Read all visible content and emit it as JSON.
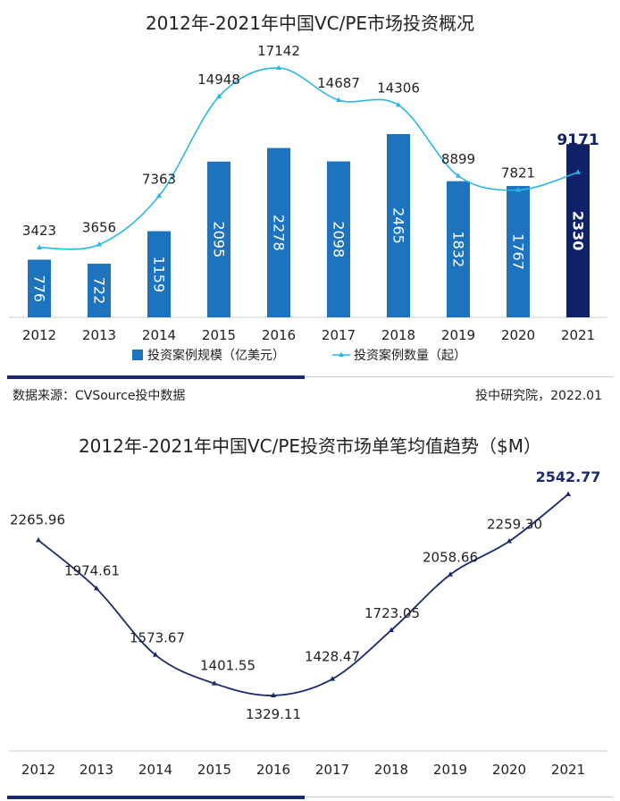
{
  "chart_data": [
    {
      "type": "bar",
      "title": "2012年-2021年中国VC/PE市场投资概况",
      "categories": [
        "2012",
        "2013",
        "2014",
        "2015",
        "2016",
        "2017",
        "2018",
        "2019",
        "2020",
        "2021"
      ],
      "series": [
        {
          "name": "投资案例规模（亿美元）",
          "kind": "bar",
          "values": [
            776,
            722,
            1159,
            2095,
            2278,
            2098,
            2465,
            1832,
            1767,
            2330
          ],
          "color": "#1e73be",
          "highlight_color": "#0f2167"
        },
        {
          "name": "投资案例数量（起）",
          "kind": "line",
          "values": [
            3423,
            3656,
            7363,
            14948,
            17142,
            14687,
            14306,
            8899,
            7821,
            9171
          ],
          "color": "#29b6e6"
        }
      ],
      "legend": "bottom",
      "grid": false
    },
    {
      "type": "line",
      "title": "2012年-2021年中国VC/PE投资市场单笔均值趋势（$M）",
      "categories": [
        "2012",
        "2013",
        "2014",
        "2015",
        "2016",
        "2017",
        "2018",
        "2019",
        "2020",
        "2021"
      ],
      "series": [
        {
          "values": [
            2265.96,
            1974.61,
            1573.67,
            1401.55,
            1329.11,
            1428.47,
            1723.05,
            2058.66,
            2259.3,
            2542.77
          ],
          "labels": [
            "2265.96",
            "1974.61",
            "1573.67",
            "1401.55",
            "1329.11",
            "1428.47",
            "1723.05",
            "2058.66",
            "2259.30",
            "2542.77"
          ],
          "color": "#1a2a6c"
        }
      ],
      "grid": false
    }
  ],
  "footer": {
    "source": "数据来源：CVSource投中数据",
    "credit": "投中研究院，2022.01"
  }
}
